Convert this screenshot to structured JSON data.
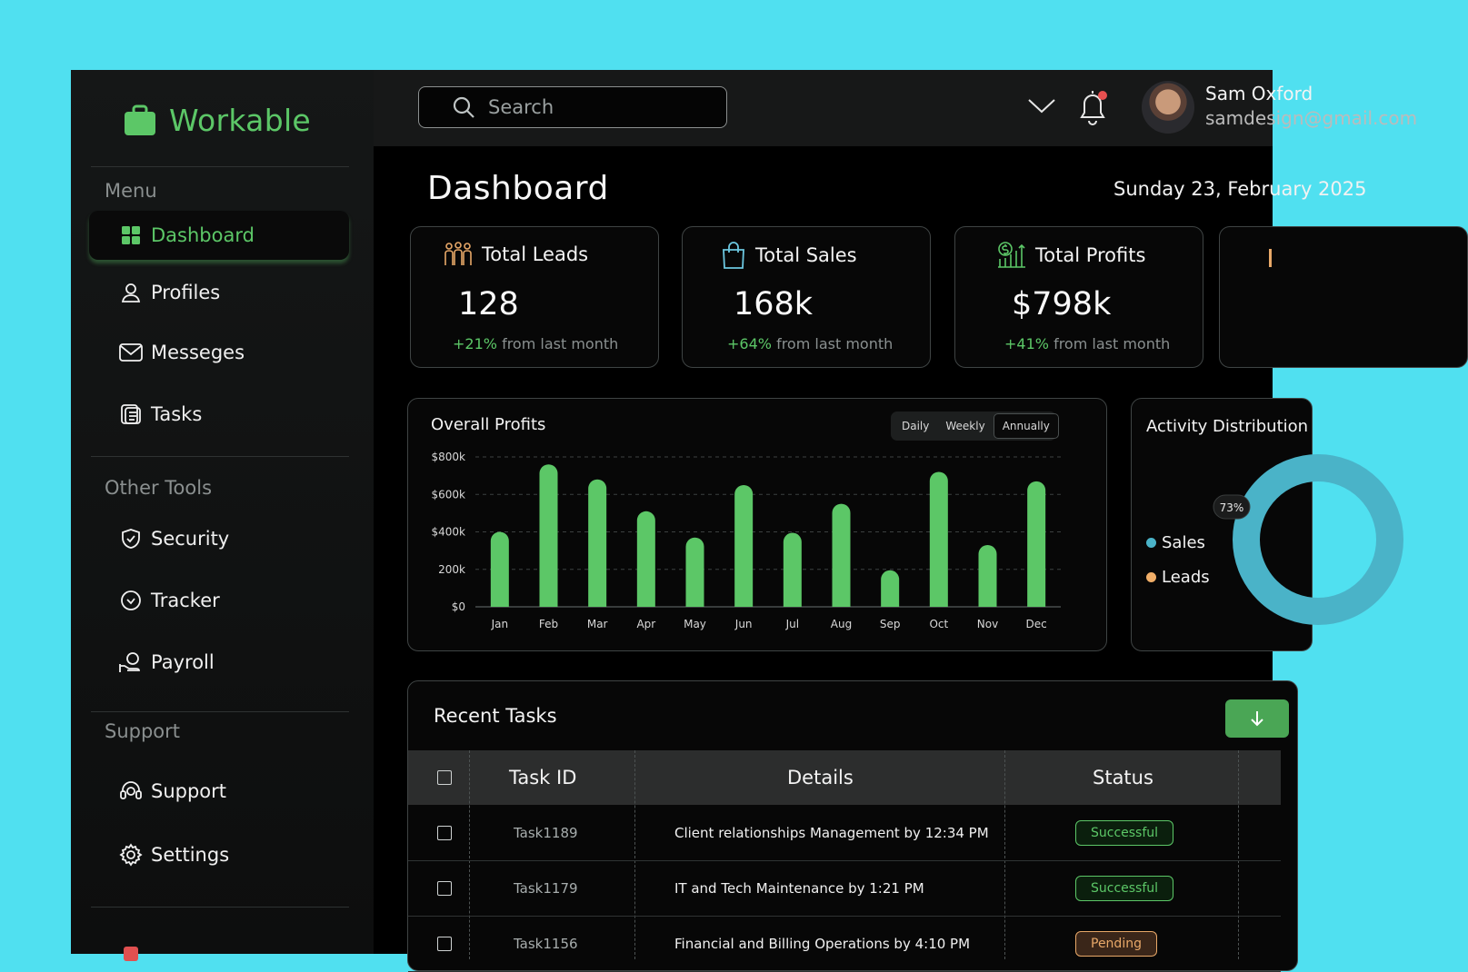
{
  "app": {
    "name": "Workable",
    "brand_color": "#5cc767"
  },
  "sidebar": {
    "sections": [
      {
        "title": "Menu",
        "items": [
          {
            "label": "Dashboard",
            "icon": "grid-icon",
            "active": true
          },
          {
            "label": "Profiles",
            "icon": "user-icon"
          },
          {
            "label": "Messeges",
            "icon": "mail-icon"
          },
          {
            "label": "Tasks",
            "icon": "tasks-icon"
          }
        ]
      },
      {
        "title": "Other Tools",
        "items": [
          {
            "label": "Security",
            "icon": "shield-icon"
          },
          {
            "label": "Tracker",
            "icon": "clock-icon"
          },
          {
            "label": "Payroll",
            "icon": "payroll-icon"
          }
        ]
      },
      {
        "title": "Support",
        "items": [
          {
            "label": "Support",
            "icon": "headset-icon"
          },
          {
            "label": "Settings",
            "icon": "gear-icon"
          }
        ]
      }
    ]
  },
  "header": {
    "search_placeholder": "Search",
    "user": {
      "name": "Sam Oxford",
      "email": "samdesign@gmail.com"
    }
  },
  "main": {
    "title": "Dashboard",
    "date": "Sunday 23, February 2025",
    "stats": [
      {
        "label": "Total Leads",
        "value": "128",
        "change": "+21%",
        "suffix": "from last month",
        "icon": "people-icon",
        "icon_color": "#e8a868"
      },
      {
        "label": "Total Sales",
        "value": "168k",
        "change": "+64%",
        "suffix": "from last month",
        "icon": "bag-icon",
        "icon_color": "#6cc7e0"
      },
      {
        "label": "Total Profits",
        "value": "$798k",
        "change": "+41%",
        "suffix": "from last month",
        "icon": "money-chart-icon",
        "icon_color": "#5cc767"
      }
    ],
    "chart": {
      "title": "Overall Profits",
      "periods": [
        "Daily",
        "Weekly",
        "Annually"
      ],
      "active_period": "Annually"
    },
    "activity": {
      "title": "Activity Distribution",
      "legend": [
        {
          "label": "Sales",
          "color": "#4ab3c8"
        },
        {
          "label": "Leads",
          "color": "#f0ae68"
        }
      ],
      "sales_pct_label": "73%"
    },
    "tasks": {
      "title": "Recent Tasks",
      "columns": [
        "Task ID",
        "Details",
        "Status"
      ],
      "rows": [
        {
          "id": "Task1189",
          "details": "Client relationships Management by 12:34 PM",
          "status": "Successful"
        },
        {
          "id": "Task1179",
          "details": "IT and Tech Maintenance by 1:21 PM",
          "status": "Successful"
        },
        {
          "id": "Task1156",
          "details": "Financial and Billing Operations by 4:10 PM",
          "status": "Pending"
        }
      ]
    }
  },
  "chart_data": {
    "type": "bar",
    "title": "Overall Profits",
    "categories": [
      "Jan",
      "Feb",
      "Mar",
      "Apr",
      "May",
      "Jun",
      "Jul",
      "Aug",
      "Sep",
      "Oct",
      "Nov",
      "Dec"
    ],
    "values": [
      400,
      760,
      680,
      510,
      370,
      650,
      395,
      550,
      195,
      720,
      330,
      670
    ],
    "ylim": [
      0,
      800
    ],
    "ytick_values": [
      0,
      200,
      400,
      600,
      800
    ],
    "ytick_labels": [
      "$0",
      "200k",
      "$400k",
      "$600k",
      "$800k"
    ],
    "xlabel": "",
    "ylabel": "",
    "bar_color": "#5cc767",
    "grid": true
  }
}
